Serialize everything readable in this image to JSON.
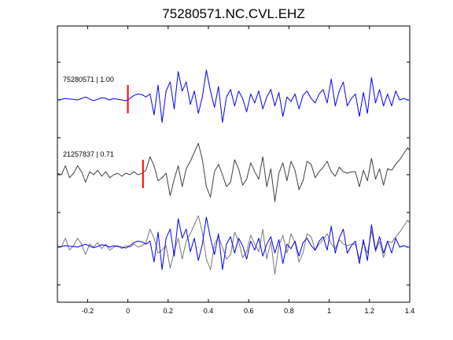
{
  "chart_data": {
    "type": "line",
    "title": "75280571.NC.CVL.EHZ",
    "xlabel": "",
    "ylabel": "",
    "xlim": [
      -0.35,
      1.4
    ],
    "x_ticks": [
      -0.2,
      0,
      0.2,
      0.4,
      0.6,
      0.8,
      1,
      1.2,
      1.4
    ],
    "x_tick_labels": [
      "-0.2",
      "0",
      "0.2",
      "0.4",
      "0.6",
      "0.8",
      "1",
      "1.2",
      "1.4"
    ],
    "grid": false,
    "panels": [
      {
        "label": "75280571 | 1.00",
        "trace": "blue",
        "pick_time": 0.0
      },
      {
        "label": "21257837 | 0.71",
        "trace": "gray",
        "pick_time": 0.075
      },
      {
        "label": "",
        "overlay": [
          "blue",
          "gray"
        ]
      }
    ],
    "series": [
      {
        "key": "blue",
        "color": "#0000ff",
        "x": [
          -0.35,
          -0.33,
          -0.31,
          -0.29,
          -0.27,
          -0.25,
          -0.23,
          -0.21,
          -0.19,
          -0.17,
          -0.15,
          -0.13,
          -0.11,
          -0.09,
          -0.07,
          -0.05,
          -0.03,
          -0.01,
          0.01,
          0.03,
          0.05,
          0.07,
          0.09,
          0.11,
          0.13,
          0.15,
          0.17,
          0.19,
          0.21,
          0.23,
          0.25,
          0.27,
          0.29,
          0.31,
          0.33,
          0.35,
          0.37,
          0.39,
          0.41,
          0.43,
          0.45,
          0.47,
          0.49,
          0.51,
          0.53,
          0.55,
          0.57,
          0.59,
          0.61,
          0.63,
          0.65,
          0.67,
          0.69,
          0.71,
          0.73,
          0.75,
          0.77,
          0.79,
          0.81,
          0.83,
          0.85,
          0.87,
          0.89,
          0.91,
          0.93,
          0.95,
          0.97,
          0.99,
          1.01,
          1.03,
          1.05,
          1.07,
          1.09,
          1.11,
          1.13,
          1.15,
          1.17,
          1.19,
          1.21,
          1.23,
          1.25,
          1.27,
          1.29,
          1.31,
          1.33,
          1.35,
          1.37,
          1.39,
          1.4
        ],
        "y": [
          0.0,
          0.02,
          0.05,
          0.03,
          0.02,
          0.0,
          0.05,
          0.1,
          0.03,
          -0.02,
          0.02,
          0.08,
          0.05,
          0.0,
          0.05,
          0.02,
          0.0,
          -0.03,
          0.05,
          0.15,
          0.2,
          0.18,
          0.1,
          0.2,
          -0.5,
          0.5,
          -0.75,
          0.3,
          0.6,
          -0.3,
          0.95,
          0.3,
          0.6,
          -0.15,
          0.3,
          -0.45,
          0.1,
          1.0,
          0.3,
          -0.25,
          0.45,
          -0.75,
          0.1,
          0.35,
          -0.2,
          0.3,
          0.05,
          -0.4,
          0.2,
          -0.1,
          0.3,
          -0.3,
          0.1,
          0.35,
          -0.2,
          0.25,
          -0.55,
          0.1,
          -0.05,
          0.2,
          -0.3,
          0.15,
          0.3,
          0.05,
          -0.1,
          0.2,
          0.35,
          -0.1,
          0.7,
          -0.2,
          0.3,
          0.6,
          -0.2,
          0.05,
          0.2,
          -0.55,
          0.25,
          -0.45,
          0.75,
          -0.1,
          0.35,
          -0.2,
          0.2,
          -0.2,
          0.3,
          0.0,
          0.05,
          0.0,
          0.0
        ]
      },
      {
        "key": "gray",
        "color": "#404040",
        "x": [
          -0.35,
          -0.33,
          -0.31,
          -0.29,
          -0.27,
          -0.25,
          -0.23,
          -0.21,
          -0.19,
          -0.17,
          -0.15,
          -0.13,
          -0.11,
          -0.09,
          -0.07,
          -0.05,
          -0.03,
          -0.01,
          0.01,
          0.03,
          0.05,
          0.07,
          0.09,
          0.11,
          0.13,
          0.15,
          0.17,
          0.19,
          0.21,
          0.23,
          0.25,
          0.27,
          0.29,
          0.31,
          0.33,
          0.35,
          0.37,
          0.39,
          0.41,
          0.43,
          0.45,
          0.47,
          0.49,
          0.51,
          0.53,
          0.55,
          0.57,
          0.59,
          0.61,
          0.63,
          0.65,
          0.67,
          0.69,
          0.71,
          0.73,
          0.75,
          0.77,
          0.79,
          0.81,
          0.83,
          0.85,
          0.87,
          0.89,
          0.91,
          0.93,
          0.95,
          0.97,
          0.99,
          1.01,
          1.03,
          1.05,
          1.07,
          1.09,
          1.11,
          1.13,
          1.15,
          1.17,
          1.19,
          1.21,
          1.23,
          1.25,
          1.27,
          1.29,
          1.31,
          1.33,
          1.35,
          1.37,
          1.39,
          1.4
        ],
        "y": [
          0.05,
          0.0,
          0.3,
          -0.1,
          0.05,
          0.3,
          0.1,
          -0.25,
          0.1,
          0.0,
          0.15,
          -0.05,
          0.1,
          -0.1,
          0.0,
          0.05,
          -0.05,
          0.05,
          0.0,
          0.1,
          0.0,
          0.05,
          0.15,
          0.6,
          0.3,
          -0.2,
          -0.1,
          0.05,
          -0.7,
          -0.15,
          0.3,
          -0.4,
          0.2,
          0.45,
          0.75,
          1.05,
          0.5,
          -0.4,
          -0.75,
          0.1,
          0.35,
          0.0,
          -0.4,
          -0.25,
          0.5,
          0.2,
          -0.35,
          -0.15,
          0.4,
          0.1,
          -0.15,
          0.6,
          -0.4,
          0.2,
          -0.9,
          0.05,
          0.4,
          -0.2,
          0.45,
          0.15,
          -0.5,
          -0.2,
          0.45,
          0.35,
          -0.1,
          0.1,
          0.25,
          0.45,
          0.1,
          -0.05,
          0.25,
          0.1,
          0.05,
          0.1,
          0.1,
          -0.4,
          0.15,
          -0.2,
          0.55,
          -0.15,
          0.2,
          -0.35,
          0.2,
          0.15,
          0.35,
          0.5,
          0.7,
          0.9,
          0.8
        ]
      }
    ]
  }
}
